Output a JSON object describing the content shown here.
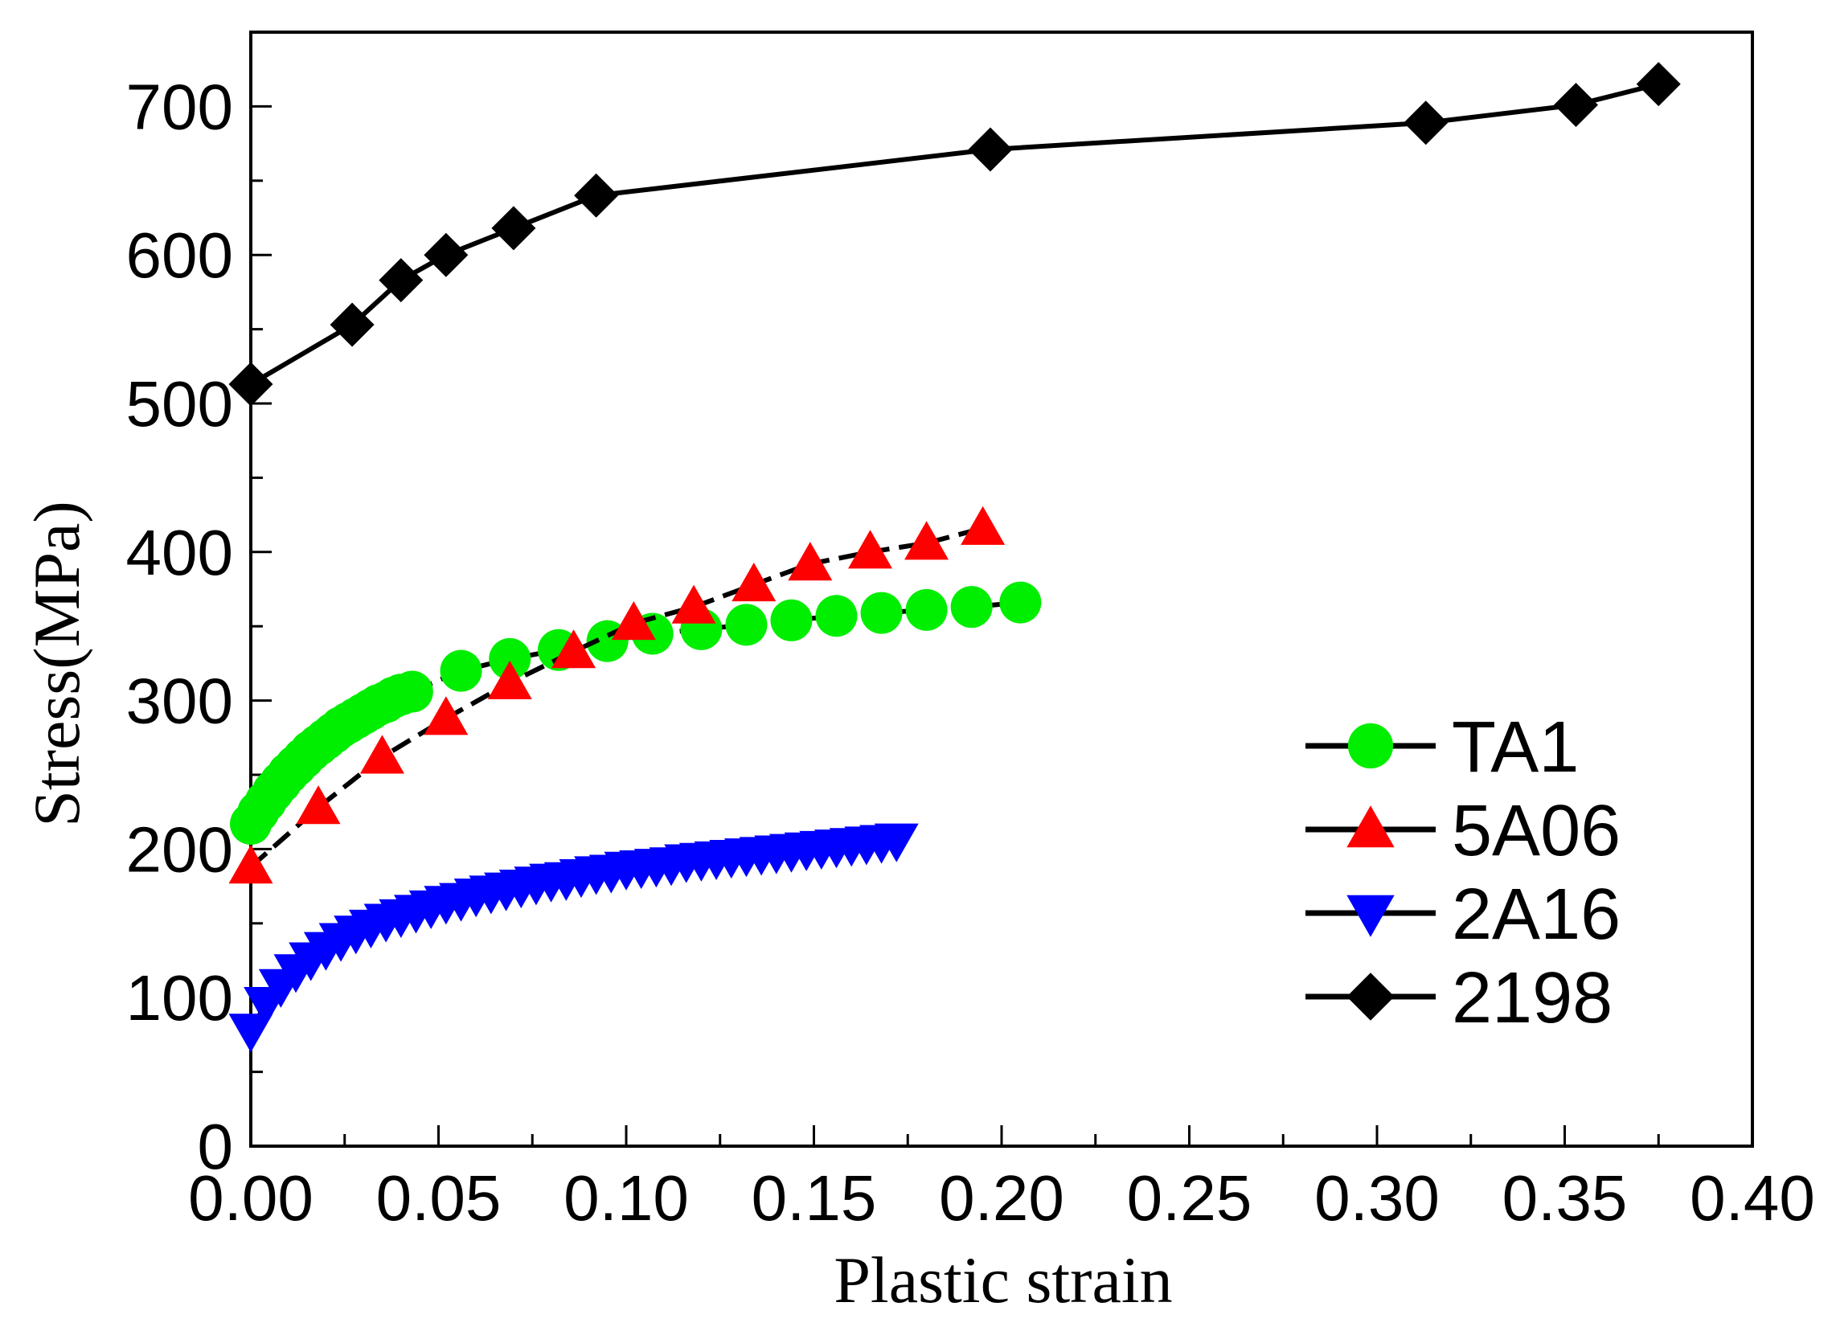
{
  "chart_data": {
    "type": "line",
    "title": "",
    "xlabel": "Plastic strain",
    "ylabel": "Stress(MPa)",
    "xlim": [
      0,
      0.4
    ],
    "ylim": [
      0,
      750
    ],
    "xticks": [
      "0.00",
      "0.05",
      "0.10",
      "0.15",
      "0.20",
      "0.25",
      "0.30",
      "0.35",
      "0.40"
    ],
    "yticks": [
      "0",
      "100",
      "200",
      "300",
      "400",
      "500",
      "600",
      "700"
    ],
    "legend_position": "right",
    "series": [
      {
        "name": "TA1",
        "color": "#00ee00",
        "marker": "circle",
        "x": [
          0.0,
          0.002,
          0.004,
          0.006,
          0.008,
          0.01,
          0.012,
          0.014,
          0.016,
          0.018,
          0.02,
          0.022,
          0.024,
          0.026,
          0.028,
          0.03,
          0.032,
          0.034,
          0.036,
          0.038,
          0.04,
          0.043,
          0.056,
          0.069,
          0.082,
          0.095,
          0.107,
          0.12,
          0.132,
          0.144,
          0.156,
          0.168,
          0.18,
          0.192,
          0.205
        ],
        "y": [
          217,
          225,
          232,
          239,
          245,
          251,
          256,
          261,
          266,
          270,
          274,
          278,
          282,
          285,
          288,
          291,
          294,
          297,
          299,
          302,
          304,
          306,
          320,
          328,
          334,
          340,
          345,
          348,
          351,
          354,
          357,
          359,
          361,
          363,
          366
        ]
      },
      {
        "name": "5A06",
        "color": "#ff0000",
        "marker": "triangle-up",
        "x": [
          0.0,
          0.018,
          0.035,
          0.052,
          0.069,
          0.086,
          0.102,
          0.118,
          0.134,
          0.149,
          0.165,
          0.18,
          0.195
        ],
        "y": [
          188,
          228,
          262,
          288,
          312,
          333,
          352,
          363,
          378,
          392,
          400,
          406,
          416
        ]
      },
      {
        "name": "2A16",
        "color": "#0000ff",
        "marker": "triangle-down",
        "x": [
          0.0,
          0.004,
          0.008,
          0.012,
          0.016,
          0.02,
          0.024,
          0.028,
          0.032,
          0.036,
          0.04,
          0.044,
          0.048,
          0.052,
          0.056,
          0.06,
          0.064,
          0.068,
          0.072,
          0.076,
          0.08,
          0.084,
          0.088,
          0.092,
          0.096,
          0.1,
          0.104,
          0.108,
          0.112,
          0.116,
          0.12,
          0.124,
          0.128,
          0.132,
          0.136,
          0.14,
          0.144,
          0.148,
          0.152,
          0.156,
          0.16,
          0.164,
          0.168,
          0.172
        ],
        "y": [
          78,
          96,
          108,
          118,
          126,
          133,
          139,
          144,
          148,
          152,
          155,
          158,
          161,
          164,
          166,
          169,
          171,
          173,
          175,
          177,
          179,
          180,
          182,
          184,
          185,
          187,
          188,
          189,
          190,
          192,
          193,
          194,
          195,
          196,
          197,
          198,
          199,
          200,
          201,
          202,
          203,
          204,
          205,
          206
        ]
      },
      {
        "name": "2198",
        "color": "#000000",
        "marker": "diamond",
        "x": [
          0.0,
          0.027,
          0.04,
          0.052,
          0.07,
          0.092,
          0.197,
          0.313,
          0.353,
          0.375
        ],
        "y": [
          513,
          553,
          583,
          600,
          618,
          640,
          671,
          689,
          701,
          715
        ]
      }
    ]
  }
}
